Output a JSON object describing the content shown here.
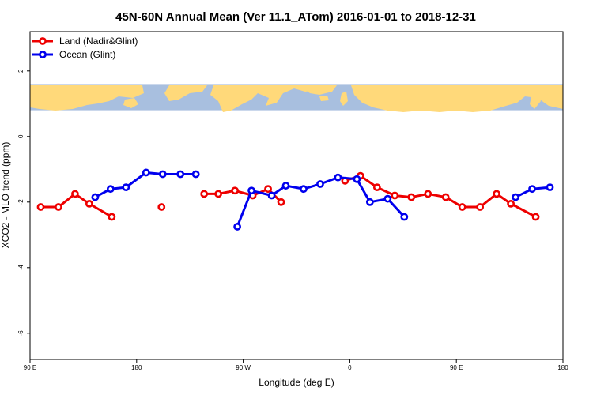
{
  "chart_data": {
    "type": "line",
    "title": "45N-60N Annual Mean (Ver 11.1_ATom)   2016-01-01 to 2018-12-31",
    "xlabel": "Longitude (deg E)",
    "ylabel": "XCO2 - MLO trend (ppm)",
    "x_ticks": [
      {
        "value": 90,
        "label": "90 E"
      },
      {
        "value": 180,
        "label": "180"
      },
      {
        "value": 270,
        "label": "90 W"
      },
      {
        "value": 360,
        "label": "0"
      },
      {
        "value": 450,
        "label": "90 E"
      },
      {
        "value": 540,
        "label": "180"
      }
    ],
    "y_ticks": [
      {
        "value": 2,
        "label": "2"
      },
      {
        "value": 0,
        "label": "0"
      },
      {
        "value": -2,
        "label": "-2"
      },
      {
        "value": -4,
        "label": "-4"
      },
      {
        "value": -6,
        "label": "-6"
      }
    ],
    "xlim": [
      90,
      540
    ],
    "ylim": [
      -6.8,
      3.2
    ],
    "map_band": {
      "ymin": 0.8,
      "ymax": 1.6,
      "ocean_color": "#a8bfdf",
      "land_color": "#ffd97a"
    },
    "legend_position": "top-left",
    "series": [
      {
        "name": "Land (Nadir&Glint)",
        "color": "#ee0000",
        "segments": [
          [
            [
              99,
              -2.15
            ],
            [
              114,
              -2.15
            ],
            [
              128,
              -1.75
            ],
            [
              140,
              -2.05
            ],
            [
              159,
              -2.45
            ]
          ],
          [
            [
              201,
              -2.15
            ]
          ],
          [
            [
              237,
              -1.75
            ],
            [
              249,
              -1.75
            ],
            [
              263,
              -1.65
            ],
            [
              278,
              -1.8
            ],
            [
              291,
              -1.6
            ],
            [
              302,
              -2.0
            ]
          ],
          [
            [
              356,
              -1.35
            ],
            [
              369,
              -1.2
            ],
            [
              383,
              -1.55
            ],
            [
              398,
              -1.8
            ],
            [
              412,
              -1.85
            ],
            [
              426,
              -1.75
            ],
            [
              441,
              -1.85
            ],
            [
              455,
              -2.15
            ],
            [
              470,
              -2.15
            ],
            [
              484,
              -1.75
            ],
            [
              496,
              -2.05
            ],
            [
              517,
              -2.45
            ]
          ]
        ]
      },
      {
        "name": "Ocean (Glint)",
        "color": "#0000ee",
        "segments": [
          [
            [
              145,
              -1.85
            ],
            [
              158,
              -1.6
            ],
            [
              171,
              -1.55
            ],
            [
              188,
              -1.1
            ],
            [
              202,
              -1.15
            ],
            [
              217,
              -1.15
            ],
            [
              230,
              -1.15
            ]
          ],
          [
            [
              265,
              -2.75
            ],
            [
              277,
              -1.65
            ],
            [
              294,
              -1.8
            ],
            [
              306,
              -1.5
            ],
            [
              321,
              -1.6
            ],
            [
              335,
              -1.45
            ],
            [
              350,
              -1.25
            ],
            [
              366,
              -1.3
            ],
            [
              377,
              -2.0
            ],
            [
              392,
              -1.9
            ],
            [
              406,
              -2.45
            ]
          ],
          [
            [
              500,
              -1.85
            ],
            [
              514,
              -1.6
            ],
            [
              529,
              -1.55
            ]
          ]
        ]
      }
    ]
  }
}
